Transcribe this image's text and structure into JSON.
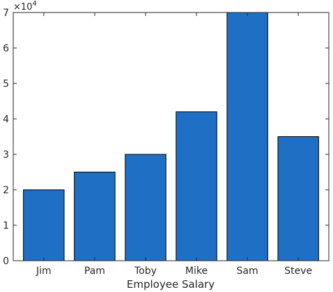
{
  "chart_data": {
    "type": "bar",
    "categories": [
      "Jim",
      "Pam",
      "Toby",
      "Mike",
      "Sam",
      "Steve"
    ],
    "values": [
      20000,
      25000,
      30000,
      42000,
      70000,
      35000
    ],
    "title": "",
    "xlabel": "Employee Salary",
    "ylabel": "",
    "ylim": [
      0,
      70000
    ],
    "y_ticks": [
      0,
      1,
      2,
      3,
      4,
      5,
      6,
      7
    ],
    "y_tick_labels": [
      "0",
      "1",
      "2",
      "3",
      "4",
      "5",
      "6",
      "7"
    ],
    "y_exponent_base": "×10",
    "y_exponent_power": "4",
    "y_tick_scale": 10000,
    "bar_color": "#1f6fc5",
    "grid": false
  }
}
